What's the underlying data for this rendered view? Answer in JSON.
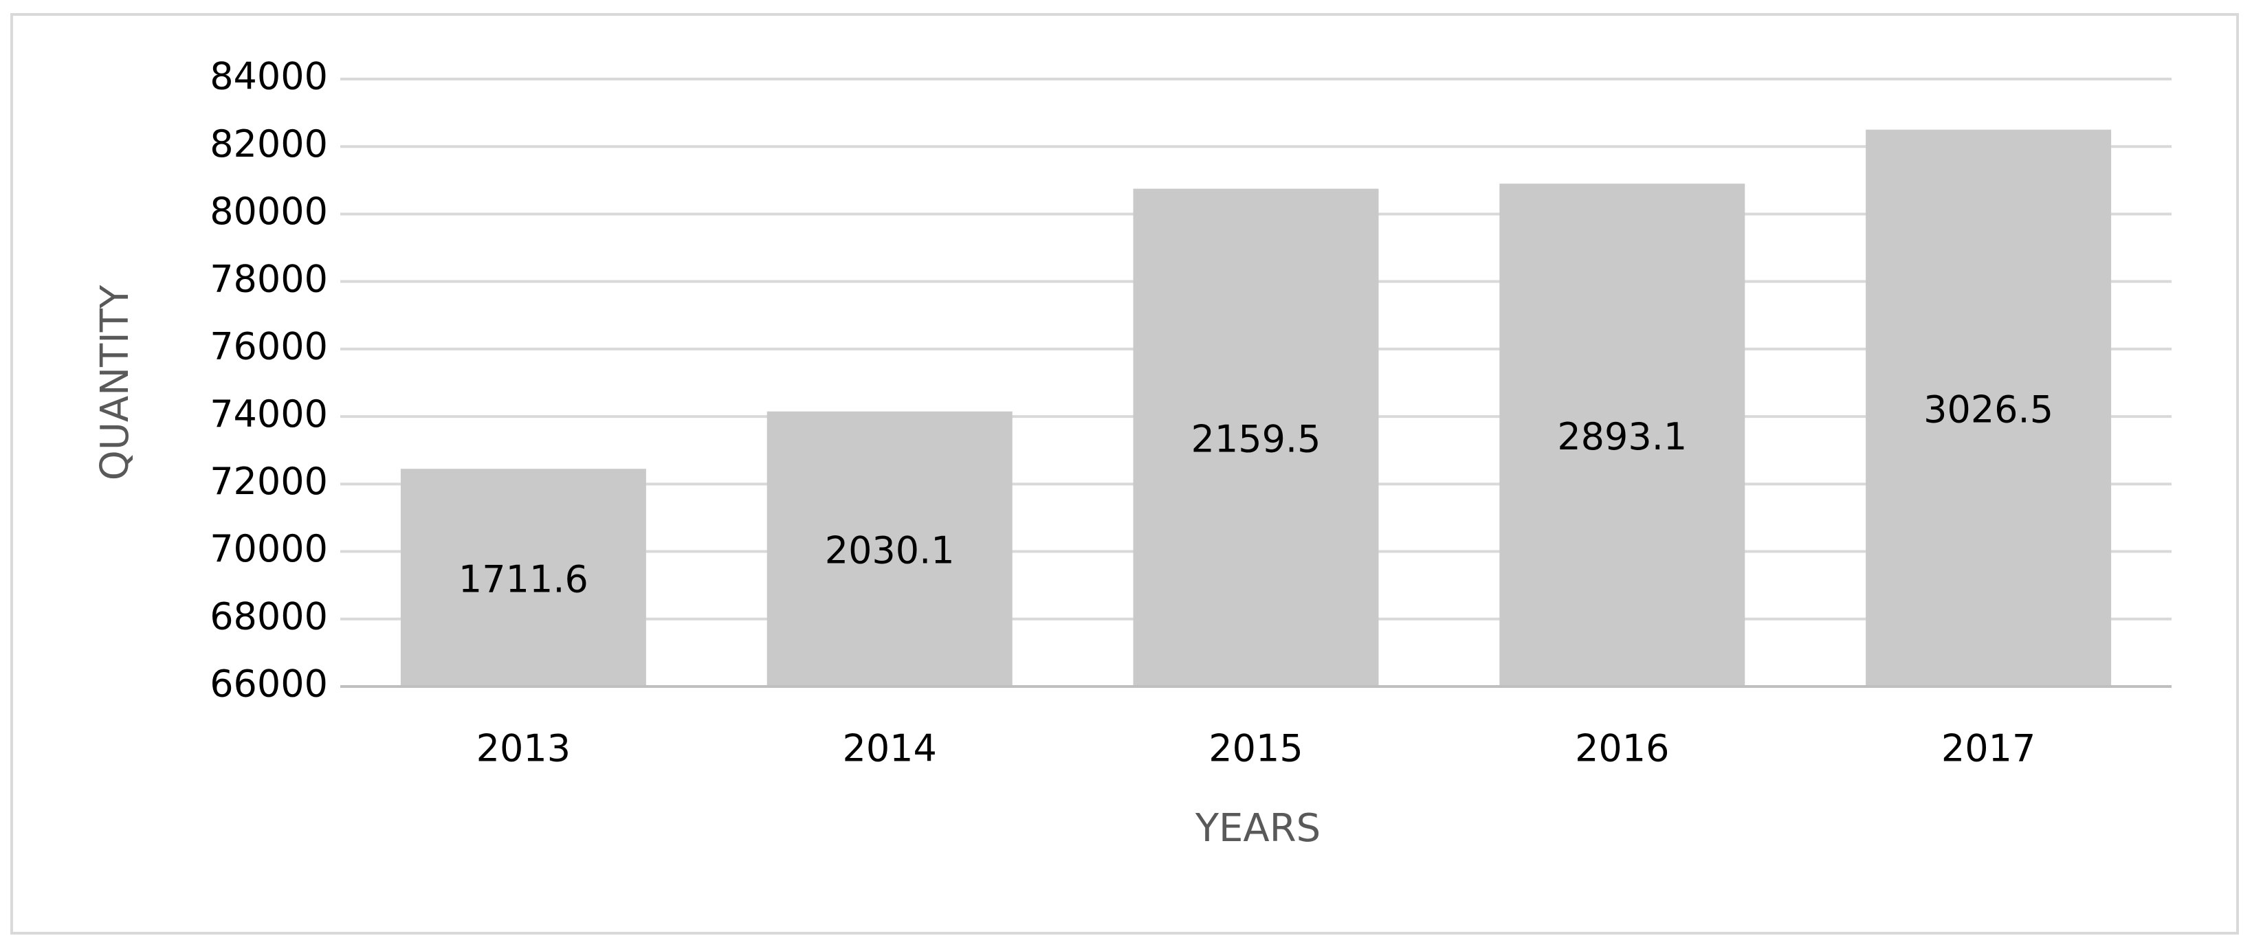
{
  "chart_data": {
    "type": "bar",
    "x_label": "YEARS",
    "y_label": "QUANTITY",
    "categories": [
      "2013",
      "2014",
      "2015",
      "2016",
      "2017"
    ],
    "values": [
      72450,
      74150,
      80750,
      80900,
      82500
    ],
    "bar_labels": [
      1711.6,
      2030.1,
      2159.5,
      2893.1,
      3026.5
    ],
    "color": "#c9c9c9",
    "ylim": [
      66000,
      84000
    ],
    "yticks": [
      66000,
      68000,
      70000,
      72000,
      74000,
      76000,
      78000,
      80000,
      82000,
      84000
    ],
    "grid": true
  }
}
